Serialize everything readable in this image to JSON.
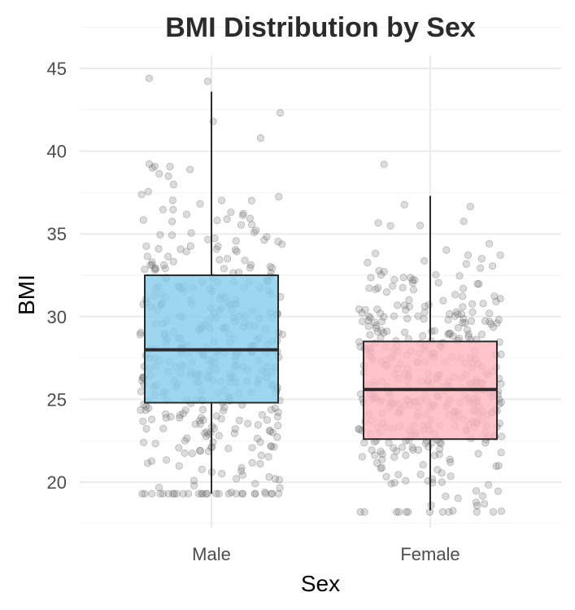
{
  "chart_data": {
    "type": "boxplot",
    "title": "BMI Distribution by Sex",
    "xlabel": "Sex",
    "ylabel": "BMI",
    "categories": [
      "Male",
      "Female"
    ],
    "ylim": [
      17.5,
      46
    ],
    "yticks": [
      20,
      25,
      30,
      35,
      40,
      45
    ],
    "grid": true,
    "legend": "none",
    "jitter_points": true,
    "boxes": [
      {
        "category": "Male",
        "whisker_low": 19.3,
        "q1": 24.8,
        "median": 28.0,
        "q3": 32.5,
        "whisker_high": 43.6,
        "color": "#87ceeb",
        "points_count": 420,
        "points_max": 44.4,
        "points_min": 19.3
      },
      {
        "category": "Female",
        "whisker_low": 18.3,
        "q1": 22.6,
        "median": 25.6,
        "q3": 28.5,
        "whisker_high": 37.3,
        "color": "#ffb6c1",
        "points_count": 420,
        "points_max": 39.3,
        "points_min": 18.2
      }
    ],
    "point_color": "#808080"
  }
}
